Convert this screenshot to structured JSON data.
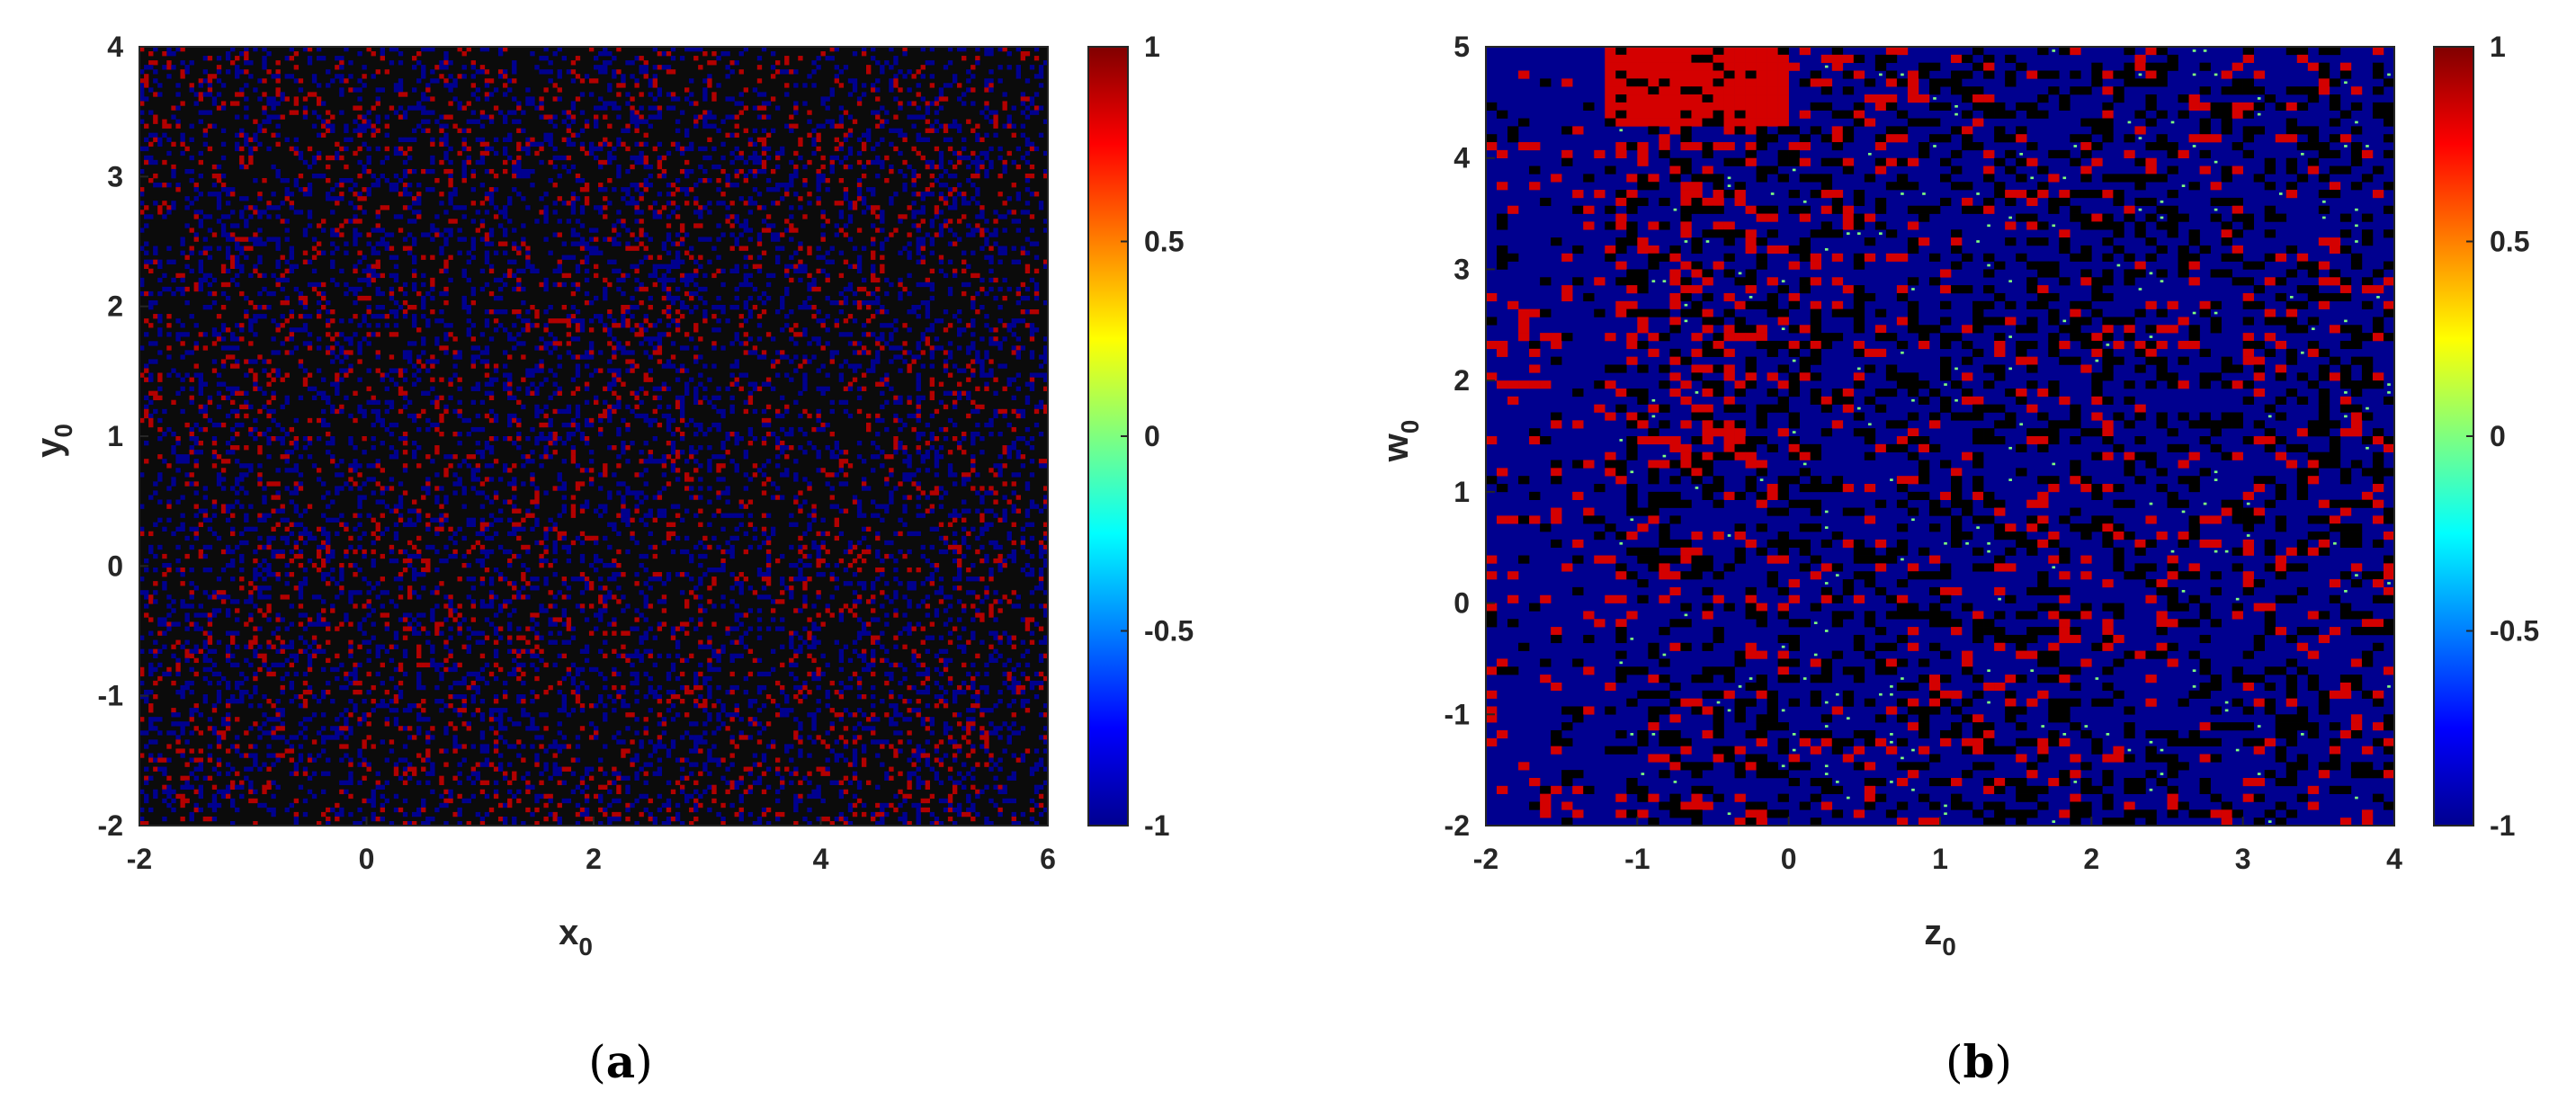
{
  "chart_data": [
    {
      "type": "heatmap",
      "panel_label": "a",
      "xlabel": "x",
      "xlabel_sub": "0",
      "ylabel": "y",
      "ylabel_sub": "0",
      "xlim": [
        -2,
        6
      ],
      "ylim": [
        -2,
        4
      ],
      "xticks": [
        "-2",
        "0",
        "2",
        "4",
        "6"
      ],
      "yticks": [
        "-2",
        "-1",
        "0",
        "1",
        "2",
        "3",
        "4"
      ],
      "clim": [
        -1,
        1
      ],
      "colorbar_ticks": [
        "-1",
        "-0.5",
        "0",
        "0.5",
        "1"
      ],
      "colormap": "jet",
      "value_fractions": {
        "-1": 0.18,
        "0": 0.74,
        "1": 0.08
      },
      "colors": {
        "background": "#0b0b0b",
        "low": "#00008f",
        "high": "#b30000"
      },
      "grid": false
    },
    {
      "type": "heatmap",
      "panel_label": "b",
      "xlabel": "z",
      "xlabel_sub": "0",
      "ylabel": "w",
      "ylabel_sub": "0",
      "xlim": [
        -2,
        4
      ],
      "ylim": [
        -2,
        5
      ],
      "xticks": [
        "-2",
        "-1",
        "0",
        "1",
        "2",
        "3",
        "4"
      ],
      "yticks": [
        "-2",
        "-1",
        "0",
        "1",
        "2",
        "3",
        "4",
        "5"
      ],
      "clim": [
        -1,
        1
      ],
      "colorbar_ticks": [
        "-1",
        "-0.5",
        "0",
        "0.5",
        "1"
      ],
      "colormap": "jet",
      "value_fractions": {
        "-1": 0.62,
        "0": 0.26,
        "1": 0.09,
        "0.1": 0.03
      },
      "colors": {
        "background": "#00008f",
        "black": "#000000",
        "high": "#d40000",
        "dots": "#7fff7f"
      },
      "grid": false
    }
  ]
}
